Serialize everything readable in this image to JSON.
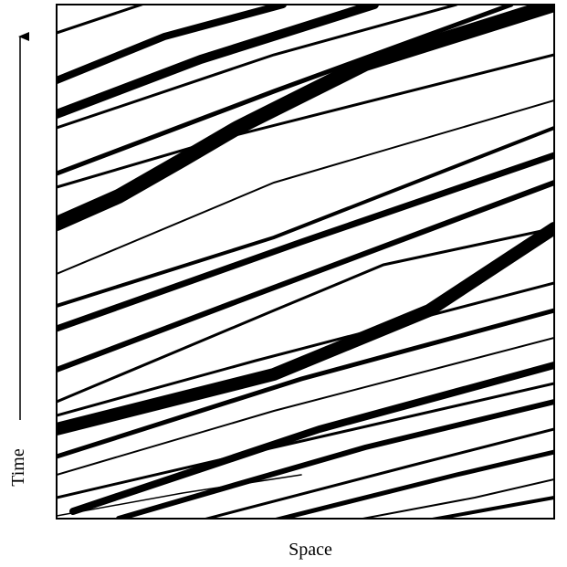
{
  "axes": {
    "y_label": "Time",
    "x_label": "Space"
  }
}
